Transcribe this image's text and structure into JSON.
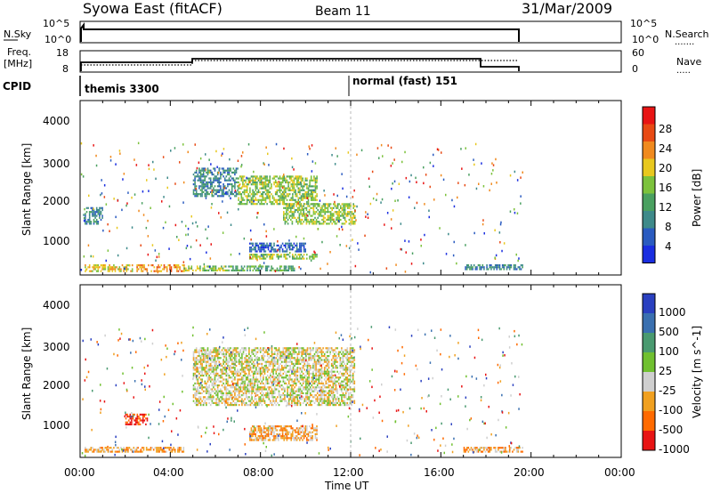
{
  "header": {
    "station": "Syowa East (fitACF)",
    "beam": "Beam 11",
    "date": "31/Mar/2009"
  },
  "nsky_panel": {
    "left_label": "N.Sky",
    "left_ticks": [
      "10^5",
      "10^0"
    ],
    "right_ticks": [
      "10^5",
      "10^0"
    ],
    "right_label": "N.Search",
    "right_legend": "......."
  },
  "freq_panel": {
    "left_label_1": "Freq.",
    "left_label_2": "[MHz]",
    "left_ticks": [
      "18",
      "8"
    ],
    "right_ticks": [
      "60",
      "0"
    ],
    "right_label": "Nave",
    "right_legend": "....."
  },
  "cpid_panel": {
    "label": "CPID",
    "programs": [
      {
        "name": "themis 3300",
        "start_hour": 0
      },
      {
        "name": "normal (fast) 151",
        "start_hour": 12
      }
    ]
  },
  "x_axis": {
    "label": "Time UT",
    "ticks": [
      "00:00",
      "04:00",
      "08:00",
      "12:00",
      "16:00",
      "20:00",
      "00:00"
    ]
  },
  "power_panel": {
    "ylabel": "Slant Range [km]",
    "yticks": [
      "4000",
      "3000",
      "2000",
      "1000"
    ],
    "colorbar_label": "Power [dB]",
    "colorbar_ticks": [
      "28",
      "24",
      "20",
      "16",
      "12",
      "8",
      "4"
    ]
  },
  "velocity_panel": {
    "ylabel": "Slant Range [km]",
    "yticks": [
      "4000",
      "3000",
      "2000",
      "1000"
    ],
    "colorbar_label": "Velocity [m s^-1]",
    "colorbar_ticks": [
      "1000",
      "500",
      "100",
      "25",
      "-25",
      "-100",
      "-500",
      "-1000"
    ]
  },
  "colors": {
    "power_scale": [
      "#1a2ee0",
      "#2a5bc0",
      "#3e8a8a",
      "#4aa060",
      "#7cc23c",
      "#e8c81e",
      "#f08a1e",
      "#e84a14",
      "#e81414"
    ],
    "velocity_scale": [
      "#e81414",
      "#ff6a00",
      "#f0a020",
      "#cfcfcf",
      "#70c030",
      "#4a9a70",
      "#3a70b0",
      "#2a40c0"
    ]
  },
  "chart_data": {
    "type": "heatmap",
    "title": "Syowa East (fitACF)",
    "xlabel": "Time UT",
    "ylabel": "Slant Range [km]",
    "xlim": [
      0,
      24
    ],
    "ylim": [
      180,
      4600
    ],
    "nsky_level": 100000.0,
    "frequency_segments": [
      {
        "start_hour": 0,
        "end_hour": 5.0,
        "freq_mhz": 11.0
      },
      {
        "start_hour": 5.0,
        "end_hour": 18.0,
        "freq_mhz": 12.5
      },
      {
        "start_hour": 18.0,
        "end_hour": 19.6,
        "freq_mhz": 10.5
      }
    ],
    "data_end_hour": 19.6,
    "power_regions": [
      {
        "t0": 0.2,
        "t1": 2.3,
        "r0": 300,
        "r1": 450,
        "level": 20
      },
      {
        "t0": 2.5,
        "t1": 4.6,
        "r0": 300,
        "r1": 450,
        "level": 26
      },
      {
        "t0": 4.6,
        "t1": 6.5,
        "r0": 300,
        "r1": 420,
        "level": 18
      },
      {
        "t0": 6.5,
        "t1": 9.5,
        "r0": 320,
        "r1": 420,
        "level": 14
      },
      {
        "t0": 0.2,
        "t1": 1.0,
        "r0": 1500,
        "r1": 1900,
        "level": 10
      },
      {
        "t0": 5.0,
        "t1": 7.0,
        "r0": 2200,
        "r1": 2900,
        "level": 12
      },
      {
        "t0": 7.0,
        "t1": 10.5,
        "r0": 2000,
        "r1": 2700,
        "level": 16
      },
      {
        "t0": 9.0,
        "t1": 12.2,
        "r0": 1500,
        "r1": 2000,
        "level": 18
      },
      {
        "t0": 7.5,
        "t1": 10.0,
        "r0": 800,
        "r1": 1000,
        "level": 8
      },
      {
        "t0": 7.5,
        "t1": 10.5,
        "r0": 600,
        "r1": 720,
        "level": 18
      },
      {
        "t0": 17.0,
        "t1": 19.6,
        "r0": 320,
        "r1": 450,
        "level": 12
      }
    ],
    "velocity_regions": [
      {
        "t0": 0.2,
        "t1": 4.6,
        "r0": 300,
        "r1": 450,
        "level": -100
      },
      {
        "t0": 2.0,
        "t1": 3.0,
        "r0": 1000,
        "r1": 1300,
        "level": -1000
      },
      {
        "t0": 5.0,
        "t1": 12.2,
        "r0": 1500,
        "r1": 3000,
        "level": 0
      },
      {
        "t0": 7.5,
        "t1": 10.5,
        "r0": 600,
        "r1": 1000,
        "level": -100
      },
      {
        "t0": 17.0,
        "t1": 19.6,
        "r0": 320,
        "r1": 450,
        "level": -100
      }
    ]
  }
}
